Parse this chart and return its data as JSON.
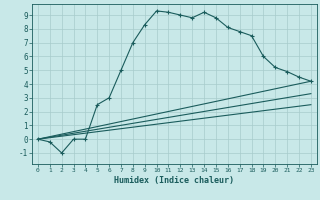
{
  "xlabel": "Humidex (Indice chaleur)",
  "xlim": [
    -0.5,
    23.5
  ],
  "ylim": [
    -1.8,
    9.8
  ],
  "background_color": "#c8e8e8",
  "grid_color": "#a8cccc",
  "line_color": "#1a5c5c",
  "curve1_x": [
    0,
    1,
    2,
    3,
    4,
    5,
    6,
    7,
    8,
    9,
    10,
    11,
    12,
    13,
    14,
    15,
    16,
    17,
    18,
    19,
    20,
    21,
    22,
    23
  ],
  "curve1_y": [
    0.0,
    -0.2,
    -1.0,
    0.0,
    0.0,
    2.5,
    3.0,
    5.0,
    7.0,
    8.3,
    9.3,
    9.2,
    9.0,
    8.8,
    9.2,
    8.8,
    8.1,
    7.8,
    7.5,
    6.0,
    5.2,
    4.9,
    4.5,
    4.2
  ],
  "line1_x": [
    0,
    23
  ],
  "line1_y": [
    0.0,
    4.2
  ],
  "line2_x": [
    0,
    23
  ],
  "line2_y": [
    0.0,
    3.3
  ],
  "line3_x": [
    0,
    23
  ],
  "line3_y": [
    0.0,
    2.5
  ],
  "xticks": [
    0,
    1,
    2,
    3,
    4,
    5,
    6,
    7,
    8,
    9,
    10,
    11,
    12,
    13,
    14,
    15,
    16,
    17,
    18,
    19,
    20,
    21,
    22,
    23
  ],
  "xtick_labels": [
    "0",
    "1",
    "2",
    "3",
    "4",
    "5",
    "6",
    "7",
    "8",
    "9",
    "10",
    "11",
    "12",
    "13",
    "14",
    "15",
    "16",
    "17",
    "18",
    "19",
    "20",
    "21",
    "22",
    "23"
  ],
  "yticks": [
    -1,
    0,
    1,
    2,
    3,
    4,
    5,
    6,
    7,
    8,
    9
  ],
  "ytick_labels": [
    "-1",
    "0",
    "1",
    "2",
    "3",
    "4",
    "5",
    "6",
    "7",
    "8",
    "9"
  ]
}
